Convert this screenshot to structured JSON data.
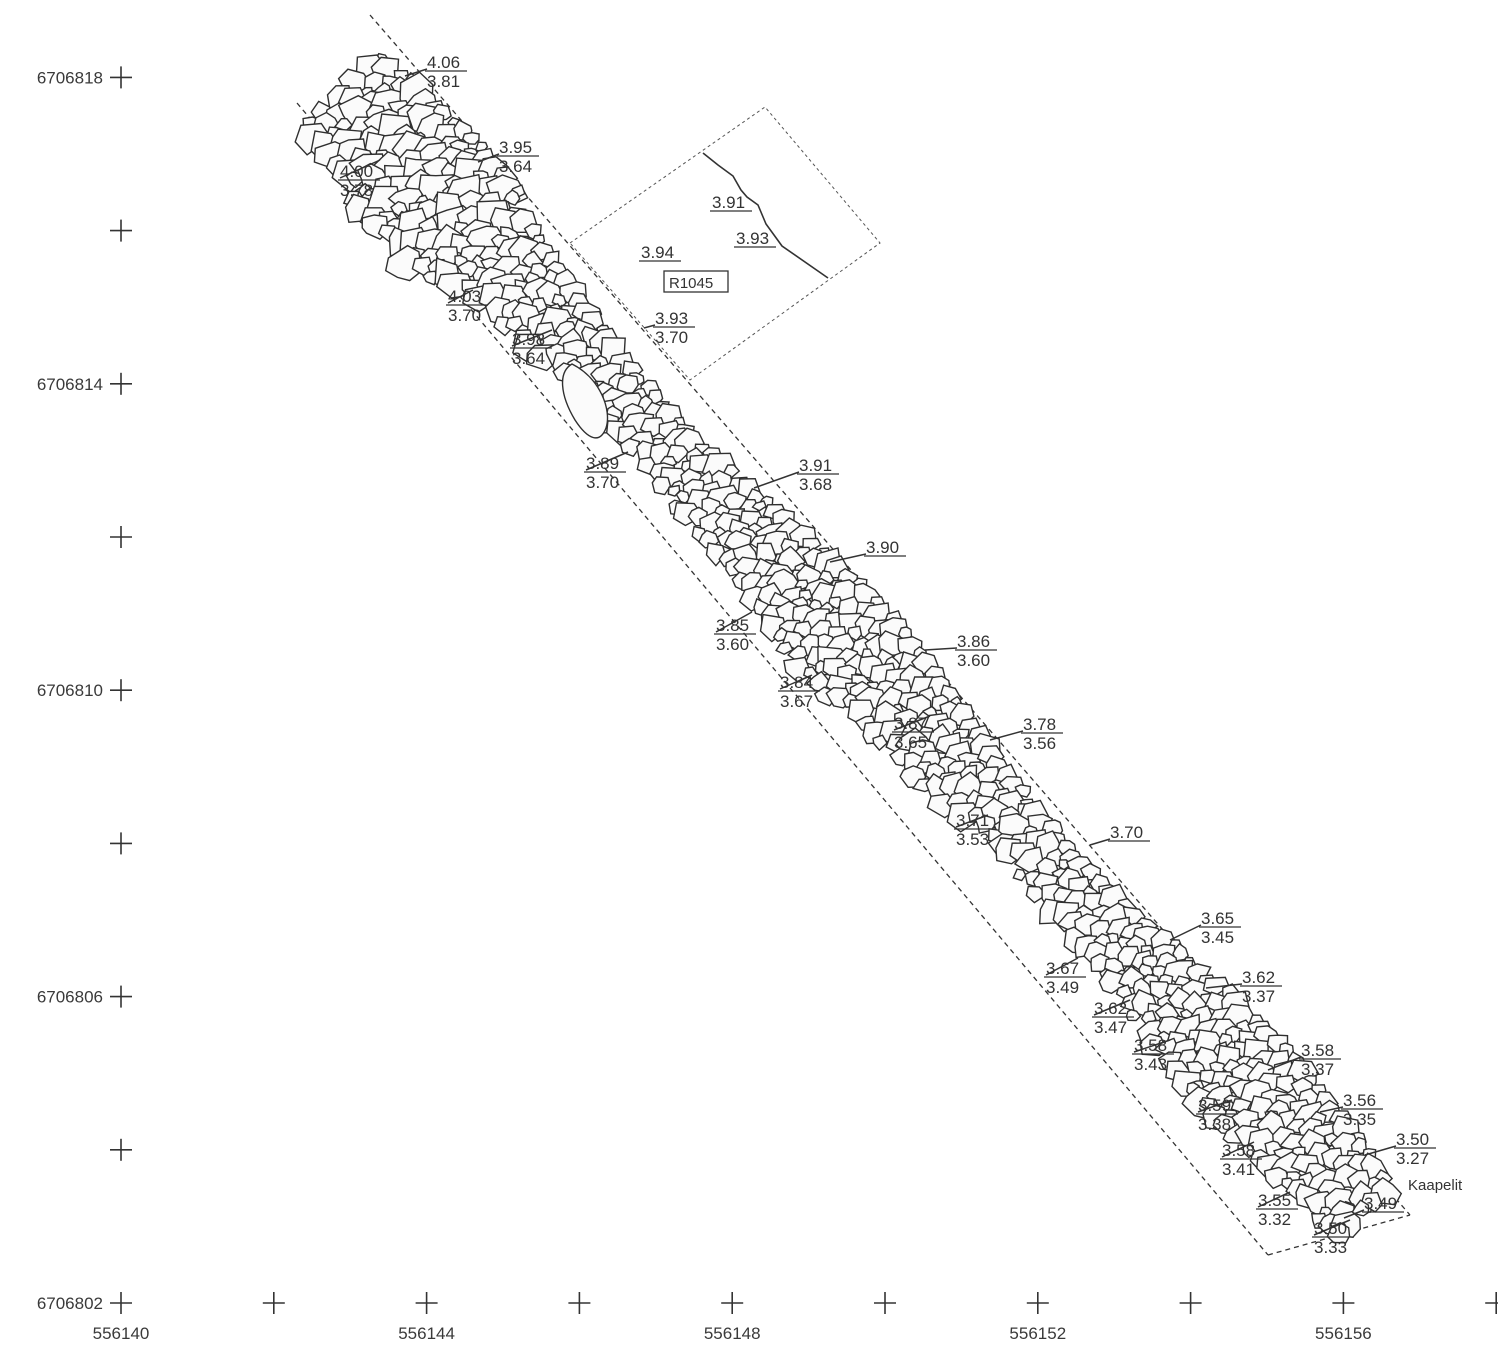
{
  "map": {
    "x_ticks": [
      {
        "label": "556140",
        "value": 556140
      },
      {
        "label": "556144",
        "value": 556144
      },
      {
        "label": "556148",
        "value": 556148
      },
      {
        "label": "556152",
        "value": 556152
      },
      {
        "label": "556156",
        "value": 556156
      }
    ],
    "y_ticks": [
      {
        "label": "6706818",
        "value": 6706818
      },
      {
        "label": "6706814",
        "value": 6706814
      },
      {
        "label": "6706810",
        "value": 6706810
      },
      {
        "label": "6706806",
        "value": 6706806
      },
      {
        "label": "6706802",
        "value": 6706802
      }
    ],
    "grid_step": 2,
    "feature_label": "R1045",
    "cable_label": "Kaapelit",
    "feature_levels": [
      {
        "top": "3.91",
        "bottom": ""
      },
      {
        "top": "3.93",
        "bottom": ""
      },
      {
        "top": "3.94",
        "bottom": ""
      }
    ],
    "levels": [
      {
        "top": "4.06",
        "bottom": "3.81"
      },
      {
        "top": "3.95",
        "bottom": "3.64"
      },
      {
        "top": "4.00",
        "bottom": "3.78"
      },
      {
        "top": "4.03",
        "bottom": "3.70"
      },
      {
        "top": "3.93",
        "bottom": "3.70"
      },
      {
        "top": "3.98",
        "bottom": "3.64"
      },
      {
        "top": "3.89",
        "bottom": "3.70"
      },
      {
        "top": "3.91",
        "bottom": "3.68"
      },
      {
        "top": "3.90",
        "bottom": ""
      },
      {
        "top": "3.85",
        "bottom": "3.60"
      },
      {
        "top": "3.86",
        "bottom": "3.60"
      },
      {
        "top": "3.84",
        "bottom": "3.67"
      },
      {
        "top": "3.87",
        "bottom": "3.65"
      },
      {
        "top": "3.78",
        "bottom": "3.56"
      },
      {
        "top": "3.71",
        "bottom": "3.53"
      },
      {
        "top": "3.70",
        "bottom": ""
      },
      {
        "top": "3.65",
        "bottom": "3.45"
      },
      {
        "top": "3.67",
        "bottom": "3.49"
      },
      {
        "top": "3.62",
        "bottom": "3.37"
      },
      {
        "top": "3.62",
        "bottom": "3.47"
      },
      {
        "top": "3.58",
        "bottom": "3.43"
      },
      {
        "top": "3.58",
        "bottom": "3.37"
      },
      {
        "top": "3.59",
        "bottom": "3.38"
      },
      {
        "top": "3.56",
        "bottom": "3.35"
      },
      {
        "top": "3.58",
        "bottom": "3.41"
      },
      {
        "top": "3.50",
        "bottom": "3.27"
      },
      {
        "top": "3.55",
        "bottom": "3.32"
      },
      {
        "top": "3.49",
        "bottom": ""
      },
      {
        "top": "3.50",
        "bottom": "3.33"
      }
    ]
  }
}
